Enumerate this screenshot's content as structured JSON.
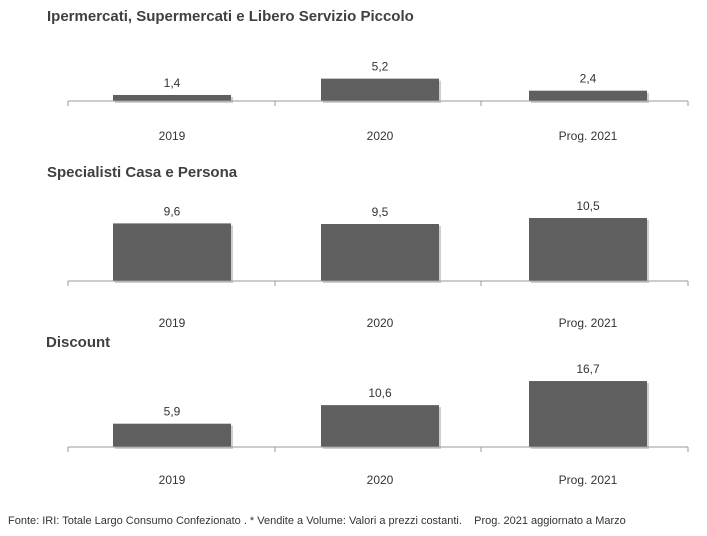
{
  "chart_data": [
    {
      "type": "bar",
      "title": "Ipermercati,  Supermercati e Libero Servizio Piccolo",
      "categories": [
        "2019",
        "2020",
        "Prog. 2021"
      ],
      "values": [
        1.4,
        5.2,
        2.4
      ],
      "value_labels": [
        "1,4",
        "5,2",
        "2,4"
      ],
      "ylim": [
        0,
        17
      ],
      "bar_color": "#5f5f5f",
      "grid": false,
      "legend": "none"
    },
    {
      "type": "bar",
      "title": "Specialisti  Casa e Persona",
      "categories": [
        "2019",
        "2020",
        "Prog. 2021"
      ],
      "values": [
        9.6,
        9.5,
        10.5
      ],
      "value_labels": [
        "9,6",
        "9,5",
        "10,5"
      ],
      "ylim": [
        0,
        17
      ],
      "bar_color": "#5f5f5f",
      "grid": false,
      "legend": "none"
    },
    {
      "type": "bar",
      "title": "Discount",
      "categories": [
        "2019",
        "2020",
        "Prog. 2021"
      ],
      "values": [
        5.9,
        10.6,
        16.7
      ],
      "value_labels": [
        "5,9",
        "10,6",
        "16,7"
      ],
      "ylim": [
        0,
        17
      ],
      "bar_color": "#5f5f5f",
      "grid": false,
      "legend": "none"
    }
  ],
  "footnote": "Fonte: IRI: Totale Largo Consumo Confezionato . * Vendite a Volume: Valori a prezzi costanti.    Prog. 2021 aggiornato a Marzo"
}
